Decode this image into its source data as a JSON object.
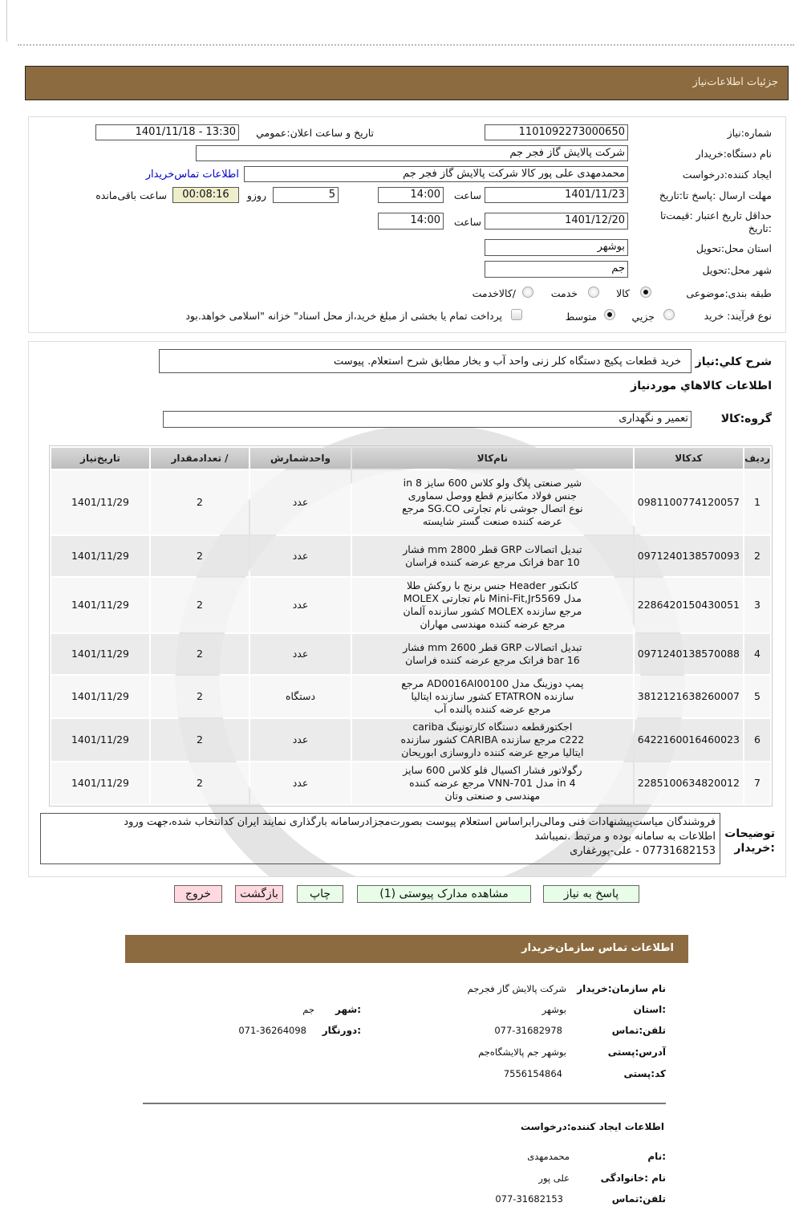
{
  "header": {
    "title": "جزئیات  اطلاعات‌نیاز"
  },
  "form": {
    "need_number_label": "شماره:نیاز",
    "need_number": "1101092273000650",
    "announce_label": "تاریخ و ساعت اعلان:عمومي",
    "announce_value": "1401/11/18 - 13:30",
    "buyer_org_label": "نام دستگاه:خریدار",
    "buyer_org": "شرکت پالایش گاز فجر جم",
    "creator_label": "ایجاد کننده:درخواست",
    "creator": "محمدمهدی علی پور کالا شرکت پالایش گاز فجر جم",
    "buyer_contact_link": "اطلاعات تماس‌خریدار",
    "deadline_label": "مهلت ارسال :پاسخ تا:تاریخ",
    "deadline_date": "1401/11/23",
    "hour_label": "ساعت",
    "deadline_time": "14:00",
    "days": "5",
    "days_label": "روزو",
    "remaining": "00:08:16",
    "remaining_label": "ساعت باقی‌مانده",
    "validity_label": "حداقل تاریخ اعتبار :قیمت‌تا :تاریخ",
    "validity_date": "1401/12/20",
    "validity_time": "14:00",
    "province_label": "استان محل:تحویل",
    "province": "بوشهر",
    "city_label": "شهر محل:تحویل",
    "city": "جم",
    "category_label": "طبقه بندی:موضوعی",
    "category_options": [
      "کالا",
      "خدمت",
      "/کالاخدمت"
    ],
    "category_selected": "کالا",
    "process_label": "نوع فرآیند: خرید",
    "process_options": [
      "جزیي",
      "متوسط"
    ],
    "process_selected": "متوسط",
    "payment_note": "پرداخت تمام یا بخشی از مبلغ خرید،از محل اسناد\" خزانه \"اسلامی خواهد.بود"
  },
  "details": {
    "summary_label": "شرح کلي:نیاز",
    "summary": "خرید قطعات پکیج دستگاه کلر زنی واحد آب و بخار مطابق شرح استعلام. پیوست",
    "goods_title": "اطلاعات کالاهاي موردنیاز",
    "group_label": "گروه:کالا",
    "group": "تعمیر و نگهداری",
    "columns": [
      "ردیف",
      "کدکالا",
      "نام‌کالا",
      "واحدشمارش",
      "/ تعدادمقدار",
      "تاریخ‌نیاز"
    ],
    "rows": [
      {
        "n": "1",
        "code": "0981100774120057",
        "name": "شیر صنعتی پلاگ ولو کلاس 600 سایز 8 in جنس فولاد مکانیزم قطع ووصل سماوری نوع اتصال جوشی نام تجارتی SG.CO مرجع عرضه کننده صنعت گستر شایسته",
        "unit": "عدد",
        "qty": "2",
        "date": "1401/11/29"
      },
      {
        "n": "2",
        "code": "0971240138570093",
        "name": "تبدیل اتصالات GRP قطر 2800 mm فشار 10 bar فراتک مرجع عرضه کننده فراسان",
        "unit": "عدد",
        "qty": "2",
        "date": "1401/11/29"
      },
      {
        "n": "3",
        "code": "2286420150430051",
        "name": "کانکتور Header جنس برنج با روکش طلا مدل Mini-Fit,Jr5569 نام تجارتی MOLEX مرجع سازنده MOLEX کشور سازنده آلمان مرجع عرضه کننده مهندسی مهاران",
        "unit": "عدد",
        "qty": "2",
        "date": "1401/11/29"
      },
      {
        "n": "4",
        "code": "0971240138570088",
        "name": "تبدیل اتصالات GRP قطر 2600 mm فشار 16 bar فراتک مرجع عرضه کننده فراسان",
        "unit": "عدد",
        "qty": "2",
        "date": "1401/11/29"
      },
      {
        "n": "5",
        "code": "3812121638260007",
        "name": "پمپ دوزینگ مدل AD0016AI00100 مرجع سازنده ETATRON کشور سازنده ایتالیا مرجع عرضه کننده پالنده آب",
        "unit": "دستگاه",
        "qty": "2",
        "date": "1401/11/29"
      },
      {
        "n": "6",
        "code": "6422160016460023",
        "name": "اجکتورقطعه دستگاه کارتونینگ cariba c222 مرجع سازنده CARIBA کشور سازنده ایتالیا مرجع عرضه کننده داروسازی ابوریحان",
        "unit": "عدد",
        "qty": "2",
        "date": "1401/11/29"
      },
      {
        "n": "7",
        "code": "2285100634820012",
        "name": "رگولاتور فشار اکسیال فلو کلاس 600 سایز 4 in مدل VNN-701 مرجع عرضه کننده مهندسی و صنعتی وتان",
        "unit": "عدد",
        "qty": "2",
        "date": "1401/11/29"
      }
    ],
    "notes_label": "توضیحات :خریدار",
    "notes_lines": [
      "فروشندگان میاست‌پیشنهادات فنی ومالی‌رابراساس استعلام پیوست بصورت‌مجزادرسامانه بارگذاری نمایند ایران کدانتخاب شده،جهت ورود",
      "اطلاعات به سامانه بوده و مرتبط .نمیباشد",
      "07731682153 - علی-پورغفاری"
    ]
  },
  "buttons": {
    "reply": "پاسخ به نیاز",
    "attachments": "مشاهده مدارک پیوستی (1)",
    "print": "چاپ",
    "back": "بازگشت",
    "exit": "خروج"
  },
  "contact": {
    "title": "اطلاعات  تماس سازمان‌خریدار",
    "org_label": "نام سازمان:خریدار",
    "org": "شرکت پالایش گاز فجرجم",
    "province_label": ":استان",
    "province": "بوشهر",
    "city_label": ":شهر",
    "city": "جم",
    "phone_label": "تلفن:تماس",
    "phone": "077-31682978",
    "fax_label": ":دورنگار",
    "fax": "071-36264098",
    "address_label": "آدرس:پستی",
    "address": "بوشهر جم پالایشگاه‌جم",
    "postal_label": "کد:پستی",
    "postal": "7556154864"
  },
  "creator": {
    "title": "اطلاعات ایجاد کننده:درخواست",
    "name_label": ":نام",
    "name": "محمدمهدی",
    "family_label": "نام :خانوادگی",
    "family": "علی پور",
    "phone_label": "تلفن:تماس",
    "phone": "077-31682153"
  },
  "colors": {
    "header_bar": "#8c6b40",
    "reply_button": "#e8fde8",
    "exit_button": "#ffd9de",
    "timer_bg": "#eeeecc",
    "link": "#0000cc"
  }
}
